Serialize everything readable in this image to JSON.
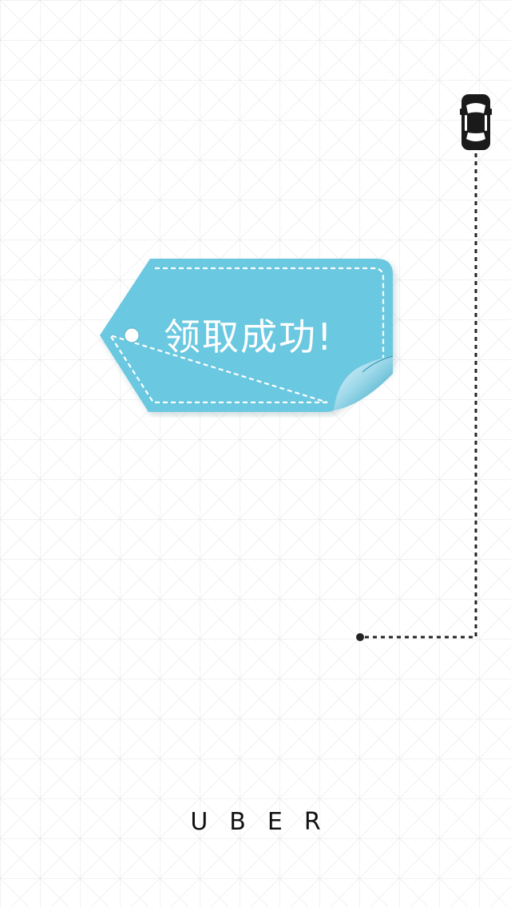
{
  "tag": {
    "label": "领取成功!"
  },
  "brand": {
    "logo_text": "UBER"
  },
  "colors": {
    "tag_fill": "#6ac8e0",
    "tag_curl": "#2ea3c4",
    "route_line": "#222222",
    "grid": "#e6e6e6"
  },
  "icons": {
    "car": "car-icon",
    "route_start": "route-start-dot-icon"
  }
}
